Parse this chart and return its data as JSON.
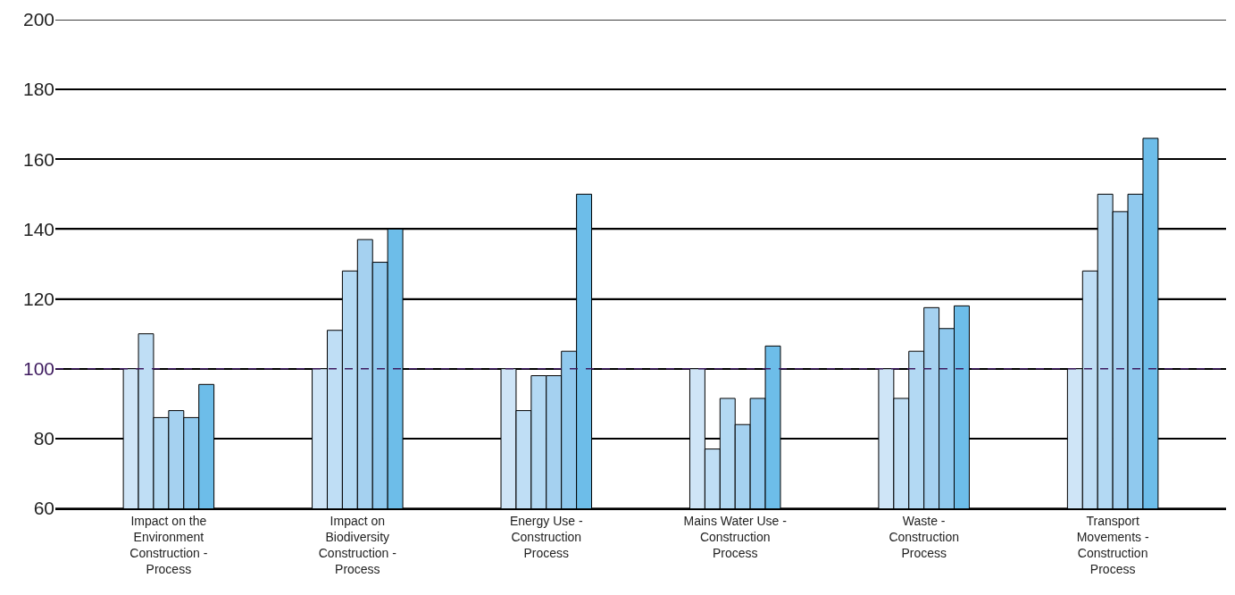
{
  "chart_data": {
    "type": "bar",
    "categories": [
      "Impact on the Environment Construction - Process",
      "Impact on Biodiversity Construction - Process",
      "Energy Use - Construction Process",
      "Mains Water Use - Construction Process",
      "Waste - Construction Process",
      "Transport Movements - Construction Process"
    ],
    "series": [
      {
        "color": "#cfe5f7",
        "values": [
          100,
          100,
          100,
          100,
          100,
          100
        ]
      },
      {
        "color": "#bfdef5",
        "values": [
          110,
          111,
          88,
          77,
          91.5,
          128
        ]
      },
      {
        "color": "#b3d9f3",
        "values": [
          86,
          128,
          98,
          91.5,
          105,
          150
        ]
      },
      {
        "color": "#a5d1f0",
        "values": [
          88,
          137,
          98,
          84,
          117.5,
          145
        ]
      },
      {
        "color": "#90c9ee",
        "values": [
          86,
          130.5,
          105,
          91.5,
          111.5,
          150
        ]
      },
      {
        "color": "#6dbde9",
        "values": [
          95.5,
          140,
          150,
          106.5,
          118,
          166
        ]
      }
    ],
    "ylim": [
      60,
      200
    ],
    "yticks": [
      60,
      80,
      100,
      120,
      140,
      160,
      180,
      200
    ],
    "grid": "y",
    "ref_lines": [
      {
        "axis": "y",
        "value": 100,
        "color": "#3d1a5e",
        "line_style": "dashed"
      }
    ]
  }
}
